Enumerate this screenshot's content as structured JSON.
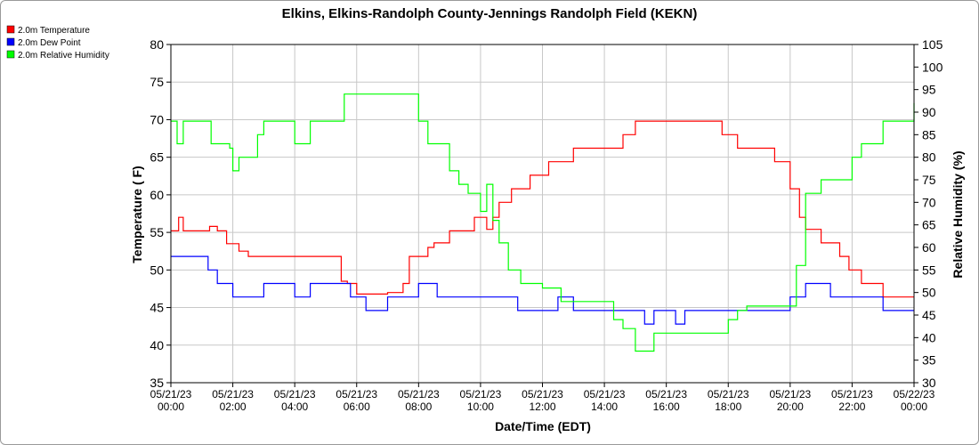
{
  "chart_data": {
    "type": "line",
    "title": "Elkins, Elkins-Randolph County-Jennings Randolph Field (KEKN)",
    "xlabel": "Date/Time (EDT)",
    "ylabel_left": "Temperature ( F)",
    "ylabel_right": "Relative Humidity (%)",
    "ylim_left": [
      35,
      80
    ],
    "ylim_right": [
      30,
      105
    ],
    "yticks_left": [
      "35",
      "40",
      "45",
      "50",
      "55",
      "60",
      "65",
      "70",
      "75",
      "80"
    ],
    "yticks_right": [
      "30",
      "35",
      "40",
      "45",
      "50",
      "55",
      "60",
      "65",
      "70",
      "75",
      "80",
      "85",
      "90",
      "95",
      "100",
      "105"
    ],
    "x_range_hours": [
      0,
      24
    ],
    "xtick_labels": [
      [
        "05/21/23",
        "00:00"
      ],
      [
        "05/21/23",
        "02:00"
      ],
      [
        "05/21/23",
        "04:00"
      ],
      [
        "05/21/23",
        "06:00"
      ],
      [
        "05/21/23",
        "08:00"
      ],
      [
        "05/21/23",
        "10:00"
      ],
      [
        "05/21/23",
        "12:00"
      ],
      [
        "05/21/23",
        "14:00"
      ],
      [
        "05/21/23",
        "16:00"
      ],
      [
        "05/21/23",
        "18:00"
      ],
      [
        "05/21/23",
        "20:00"
      ],
      [
        "05/21/23",
        "22:00"
      ],
      [
        "05/22/23",
        "00:00"
      ]
    ],
    "grid": true,
    "legend_position": "top-left",
    "series": [
      {
        "name": "2.0m Temperature",
        "color": "#ff0000",
        "axis": "left",
        "x": [
          0.0,
          0.25,
          0.4,
          0.5,
          1.0,
          1.25,
          1.5,
          1.8,
          2.0,
          2.2,
          2.5,
          2.8,
          3.0,
          3.5,
          4.0,
          4.5,
          5.0,
          5.3,
          5.5,
          5.7,
          6.0,
          6.2,
          6.5,
          7.0,
          7.5,
          7.7,
          8.0,
          8.3,
          8.5,
          8.8,
          9.0,
          9.3,
          9.6,
          9.8,
          10.0,
          10.2,
          10.4,
          10.6,
          11.0,
          11.3,
          11.6,
          12.0,
          12.2,
          12.5,
          12.8,
          13.0,
          13.3,
          13.6,
          14.0,
          14.3,
          14.6,
          15.0,
          15.5,
          16.0,
          16.5,
          17.0,
          17.5,
          17.8,
          18.0,
          18.3,
          18.7,
          19.0,
          19.5,
          19.7,
          20.0,
          20.3,
          20.5,
          20.8,
          21.0,
          21.3,
          21.6,
          21.9,
          22.0,
          22.3,
          22.6,
          23.0,
          23.3,
          23.6,
          24.0
        ],
        "y": [
          55.2,
          57.0,
          55.2,
          55.2,
          55.2,
          55.8,
          55.2,
          53.5,
          53.5,
          52.5,
          51.8,
          51.8,
          51.8,
          51.8,
          51.8,
          51.8,
          51.8,
          51.8,
          48.5,
          48.2,
          46.8,
          46.8,
          46.8,
          47.0,
          48.2,
          51.8,
          51.8,
          53.0,
          53.6,
          53.6,
          55.2,
          55.2,
          55.2,
          57.0,
          57.0,
          55.4,
          57.0,
          59.0,
          60.8,
          60.8,
          62.6,
          62.6,
          64.4,
          64.4,
          64.4,
          66.2,
          66.2,
          66.2,
          66.2,
          66.2,
          68.0,
          69.8,
          69.8,
          69.8,
          69.8,
          69.8,
          69.8,
          68.0,
          68.0,
          66.2,
          66.2,
          66.2,
          64.4,
          64.4,
          60.8,
          57.0,
          55.4,
          55.4,
          53.6,
          53.6,
          51.8,
          50.0,
          50.0,
          48.2,
          48.2,
          46.4,
          46.4,
          46.4,
          46.4
        ]
      },
      {
        "name": "2.0m Dew Point",
        "color": "#0000ff",
        "axis": "left",
        "x": [
          0.0,
          0.5,
          1.0,
          1.2,
          1.5,
          1.7,
          2.0,
          2.5,
          3.0,
          3.3,
          3.6,
          4.0,
          4.5,
          5.0,
          5.5,
          5.8,
          6.0,
          6.3,
          6.6,
          7.0,
          7.5,
          7.8,
          8.0,
          8.3,
          8.6,
          9.0,
          9.5,
          10.0,
          10.5,
          11.0,
          11.2,
          11.5,
          12.0,
          12.5,
          13.0,
          13.5,
          14.0,
          14.5,
          15.0,
          15.3,
          15.6,
          16.0,
          16.3,
          16.6,
          17.0,
          17.5,
          18.0,
          18.5,
          19.0,
          19.5,
          20.0,
          20.5,
          21.0,
          21.3,
          21.6,
          22.0,
          22.5,
          23.0,
          23.5,
          24.0
        ],
        "y": [
          51.8,
          51.8,
          51.8,
          50.0,
          48.2,
          48.2,
          46.4,
          46.4,
          48.2,
          48.2,
          48.2,
          46.4,
          48.2,
          48.2,
          48.2,
          46.4,
          46.4,
          44.6,
          44.6,
          46.4,
          46.4,
          46.4,
          48.2,
          48.2,
          46.4,
          46.4,
          46.4,
          46.4,
          46.4,
          46.4,
          44.6,
          44.6,
          44.6,
          46.4,
          44.6,
          44.6,
          44.6,
          44.6,
          44.6,
          42.8,
          44.6,
          44.6,
          42.8,
          44.6,
          44.6,
          44.6,
          44.6,
          44.6,
          44.6,
          44.6,
          46.4,
          48.2,
          48.2,
          46.4,
          46.4,
          46.4,
          46.4,
          44.6,
          44.6,
          44.6
        ]
      },
      {
        "name": "2.0m Relative Humidity",
        "color": "#00ff00",
        "axis": "right",
        "x": [
          0.0,
          0.2,
          0.4,
          0.6,
          1.0,
          1.3,
          1.6,
          1.9,
          2.0,
          2.2,
          2.5,
          2.8,
          3.0,
          3.3,
          3.6,
          4.0,
          4.5,
          5.0,
          5.3,
          5.6,
          5.9,
          6.2,
          6.5,
          7.0,
          7.3,
          7.6,
          7.9,
          8.0,
          8.3,
          8.6,
          9.0,
          9.3,
          9.6,
          10.0,
          10.2,
          10.4,
          10.6,
          10.9,
          11.0,
          11.3,
          11.6,
          12.0,
          12.3,
          12.6,
          13.0,
          13.3,
          13.6,
          14.0,
          14.3,
          14.6,
          15.0,
          15.3,
          15.6,
          16.0,
          16.3,
          16.6,
          17.0,
          17.3,
          17.6,
          18.0,
          18.3,
          18.6,
          19.0,
          19.3,
          19.6,
          19.8,
          20.0,
          20.2,
          20.5,
          20.8,
          21.0,
          21.3,
          21.6,
          22.0,
          22.3,
          22.6,
          23.0,
          23.3,
          23.6,
          24.0
        ],
        "y": [
          88,
          83,
          88,
          88,
          88,
          83,
          83,
          82,
          77,
          80,
          80,
          85,
          88,
          88,
          88,
          83,
          88,
          88,
          88,
          94,
          94,
          94,
          94,
          94,
          94,
          94,
          94,
          88,
          83,
          83,
          77,
          74,
          72,
          68,
          74,
          66,
          61,
          55,
          55,
          52,
          52,
          51,
          51,
          48,
          48,
          48,
          48,
          48,
          44,
          42,
          37,
          37,
          41,
          41,
          41,
          41,
          41,
          41,
          41,
          44,
          46,
          47,
          47,
          47,
          47,
          47,
          47,
          56,
          72,
          72,
          75,
          75,
          75,
          80,
          83,
          83,
          88,
          88,
          88,
          92
        ]
      }
    ]
  }
}
